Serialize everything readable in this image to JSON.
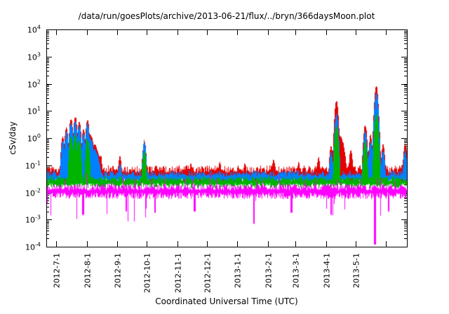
{
  "chart_data": {
    "type": "line",
    "title": "/data/run/goesPlots/archive/2013-06-21/flux/../bryn/366daysMoon.plot",
    "xlabel": "Coordinated Universal Time (UTC)",
    "ylabel": "cSv/day",
    "y_scale": "log",
    "ylim": [
      0.0001,
      10000
    ],
    "y_tick_exponents": [
      4,
      3,
      2,
      1,
      0,
      -1,
      -2,
      -3,
      -4
    ],
    "x_span_days": 366,
    "x_ticks": [
      {
        "label": "2012-7-1",
        "t": 0.0273
      },
      {
        "label": "2012-8-1",
        "t": 0.112
      },
      {
        "label": "2012-9-1",
        "t": 0.1967
      },
      {
        "label": "2012-10-1",
        "t": 0.2787
      },
      {
        "label": "2012-11-1",
        "t": 0.3634
      },
      {
        "label": "2012-12-1",
        "t": 0.4454
      },
      {
        "label": "2013-1-1",
        "t": 0.5301
      },
      {
        "label": "2013-2-1",
        "t": 0.6148
      },
      {
        "label": "2013-3-1",
        "t": 0.6913
      },
      {
        "label": "2013-4-1",
        "t": 0.776
      },
      {
        "label": "2013-5-1",
        "t": 0.8579
      },
      {
        "label": "",
        "t": 0.9426
      }
    ],
    "grid": false,
    "legend": "none",
    "background": "#ffffff",
    "axis_color": "#000000",
    "series": [
      {
        "name": "red",
        "color": "#e60000",
        "base": 0.048,
        "noise": 0.33,
        "spikes": [
          {
            "x": 0.043,
            "v": 1.2
          },
          {
            "x": 0.053,
            "v": 2.5
          },
          {
            "x": 0.066,
            "v": 5.5
          },
          {
            "x": 0.078,
            "v": 6.5
          },
          {
            "x": 0.089,
            "v": 4.5
          },
          {
            "x": 0.101,
            "v": 2.2
          },
          {
            "x": 0.112,
            "v": 5.0
          },
          {
            "x": 0.118,
            "v": 1.5,
            "w": 0.008
          },
          {
            "x": 0.13,
            "v": 0.6,
            "w": 0.01
          },
          {
            "x": 0.148,
            "v": 0.25
          },
          {
            "x": 0.202,
            "v": 0.22
          },
          {
            "x": 0.27,
            "v": 0.85
          },
          {
            "x": 0.4,
            "v": 0.12
          },
          {
            "x": 0.48,
            "v": 0.13
          },
          {
            "x": 0.55,
            "v": 0.12
          },
          {
            "x": 0.63,
            "v": 0.16
          },
          {
            "x": 0.7,
            "v": 0.13
          },
          {
            "x": 0.755,
            "v": 0.2
          },
          {
            "x": 0.79,
            "v": 0.55
          },
          {
            "x": 0.805,
            "v": 24
          },
          {
            "x": 0.815,
            "v": 1.2,
            "w": 0.008
          },
          {
            "x": 0.845,
            "v": 0.4
          },
          {
            "x": 0.885,
            "v": 3.2
          },
          {
            "x": 0.9,
            "v": 1.3
          },
          {
            "x": 0.916,
            "v": 85
          },
          {
            "x": 0.935,
            "v": 0.6
          },
          {
            "x": 0.996,
            "v": 0.65
          }
        ]
      },
      {
        "name": "blue",
        "color": "#0080ff",
        "base": 0.036,
        "noise": 0.26,
        "spikes": [
          {
            "x": 0.043,
            "v": 0.8
          },
          {
            "x": 0.053,
            "v": 1.8
          },
          {
            "x": 0.066,
            "v": 4.0
          },
          {
            "x": 0.078,
            "v": 4.5
          },
          {
            "x": 0.089,
            "v": 3.0
          },
          {
            "x": 0.101,
            "v": 1.5
          },
          {
            "x": 0.112,
            "v": 3.5
          },
          {
            "x": 0.118,
            "v": 1.0,
            "w": 0.008
          },
          {
            "x": 0.13,
            "v": 0.4,
            "w": 0.01
          },
          {
            "x": 0.202,
            "v": 0.12
          },
          {
            "x": 0.27,
            "v": 0.7
          },
          {
            "x": 0.79,
            "v": 0.3
          },
          {
            "x": 0.805,
            "v": 8
          },
          {
            "x": 0.885,
            "v": 1.8
          },
          {
            "x": 0.9,
            "v": 0.8
          },
          {
            "x": 0.916,
            "v": 50
          },
          {
            "x": 0.935,
            "v": 0.35
          },
          {
            "x": 0.996,
            "v": 0.35
          }
        ]
      },
      {
        "name": "green",
        "color": "#00b400",
        "base": 0.024,
        "noise": 0.22,
        "spikes": [
          {
            "x": 0.066,
            "v": 1.2
          },
          {
            "x": 0.078,
            "v": 1.4
          },
          {
            "x": 0.089,
            "v": 0.9
          },
          {
            "x": 0.112,
            "v": 1.0
          },
          {
            "x": 0.27,
            "v": 0.35
          },
          {
            "x": 0.805,
            "v": 3.0
          },
          {
            "x": 0.885,
            "v": 0.8
          },
          {
            "x": 0.916,
            "v": 8
          }
        ]
      },
      {
        "name": "magenta",
        "color": "#ff00ff",
        "base": 0.011,
        "noise": 0.28,
        "tail_down": {
          "p": 0.04,
          "d": 0.9
        },
        "tail_up": {
          "p": 0.06,
          "d": 0.45
        },
        "downspikes": [
          {
            "x": 0.1,
            "v": 0.0015
          },
          {
            "x": 0.22,
            "v": 0.002
          },
          {
            "x": 0.3,
            "v": 0.0018
          },
          {
            "x": 0.41,
            "v": 0.002
          },
          {
            "x": 0.575,
            "v": 0.0007
          },
          {
            "x": 0.68,
            "v": 0.0018
          },
          {
            "x": 0.79,
            "v": 0.0015
          },
          {
            "x": 0.912,
            "v": 0.00012
          },
          {
            "x": 0.95,
            "v": 0.002
          }
        ]
      }
    ]
  }
}
